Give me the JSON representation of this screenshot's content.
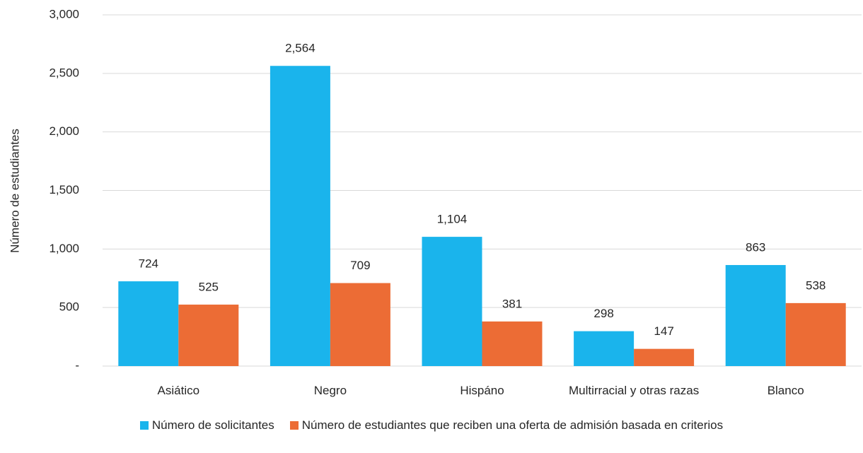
{
  "chart_data": {
    "type": "bar",
    "y_label": "Número de estudiantes",
    "categories": [
      "Asiático",
      "Negro",
      "Hispáno",
      "Multirracial y otras razas",
      "Blanco"
    ],
    "series": [
      {
        "name": "Número de solicitantes",
        "color": "#1ab4ec",
        "values": [
          724,
          2564,
          1104,
          298,
          863
        ],
        "value_labels": [
          "724",
          "2,564",
          "1,104",
          "298",
          "863"
        ]
      },
      {
        "name": "Número de estudiantes que reciben una oferta de admisión basada en criterios",
        "color": "#ec6c35",
        "values": [
          525,
          709,
          381,
          147,
          538
        ],
        "value_labels": [
          "525",
          "709",
          "381",
          "147",
          "538"
        ]
      }
    ],
    "ylim": [
      0,
      3000
    ],
    "yticks": [
      {
        "value": 0,
        "label": "-"
      },
      500,
      {
        "value": 1000,
        "label": "1,000"
      },
      {
        "value": 1500,
        "label": "1,500"
      },
      {
        "value": 2000,
        "label": "2,000"
      },
      {
        "value": 2500,
        "label": "2,500"
      },
      {
        "value": 3000,
        "label": "3,000"
      }
    ],
    "grid": true
  }
}
